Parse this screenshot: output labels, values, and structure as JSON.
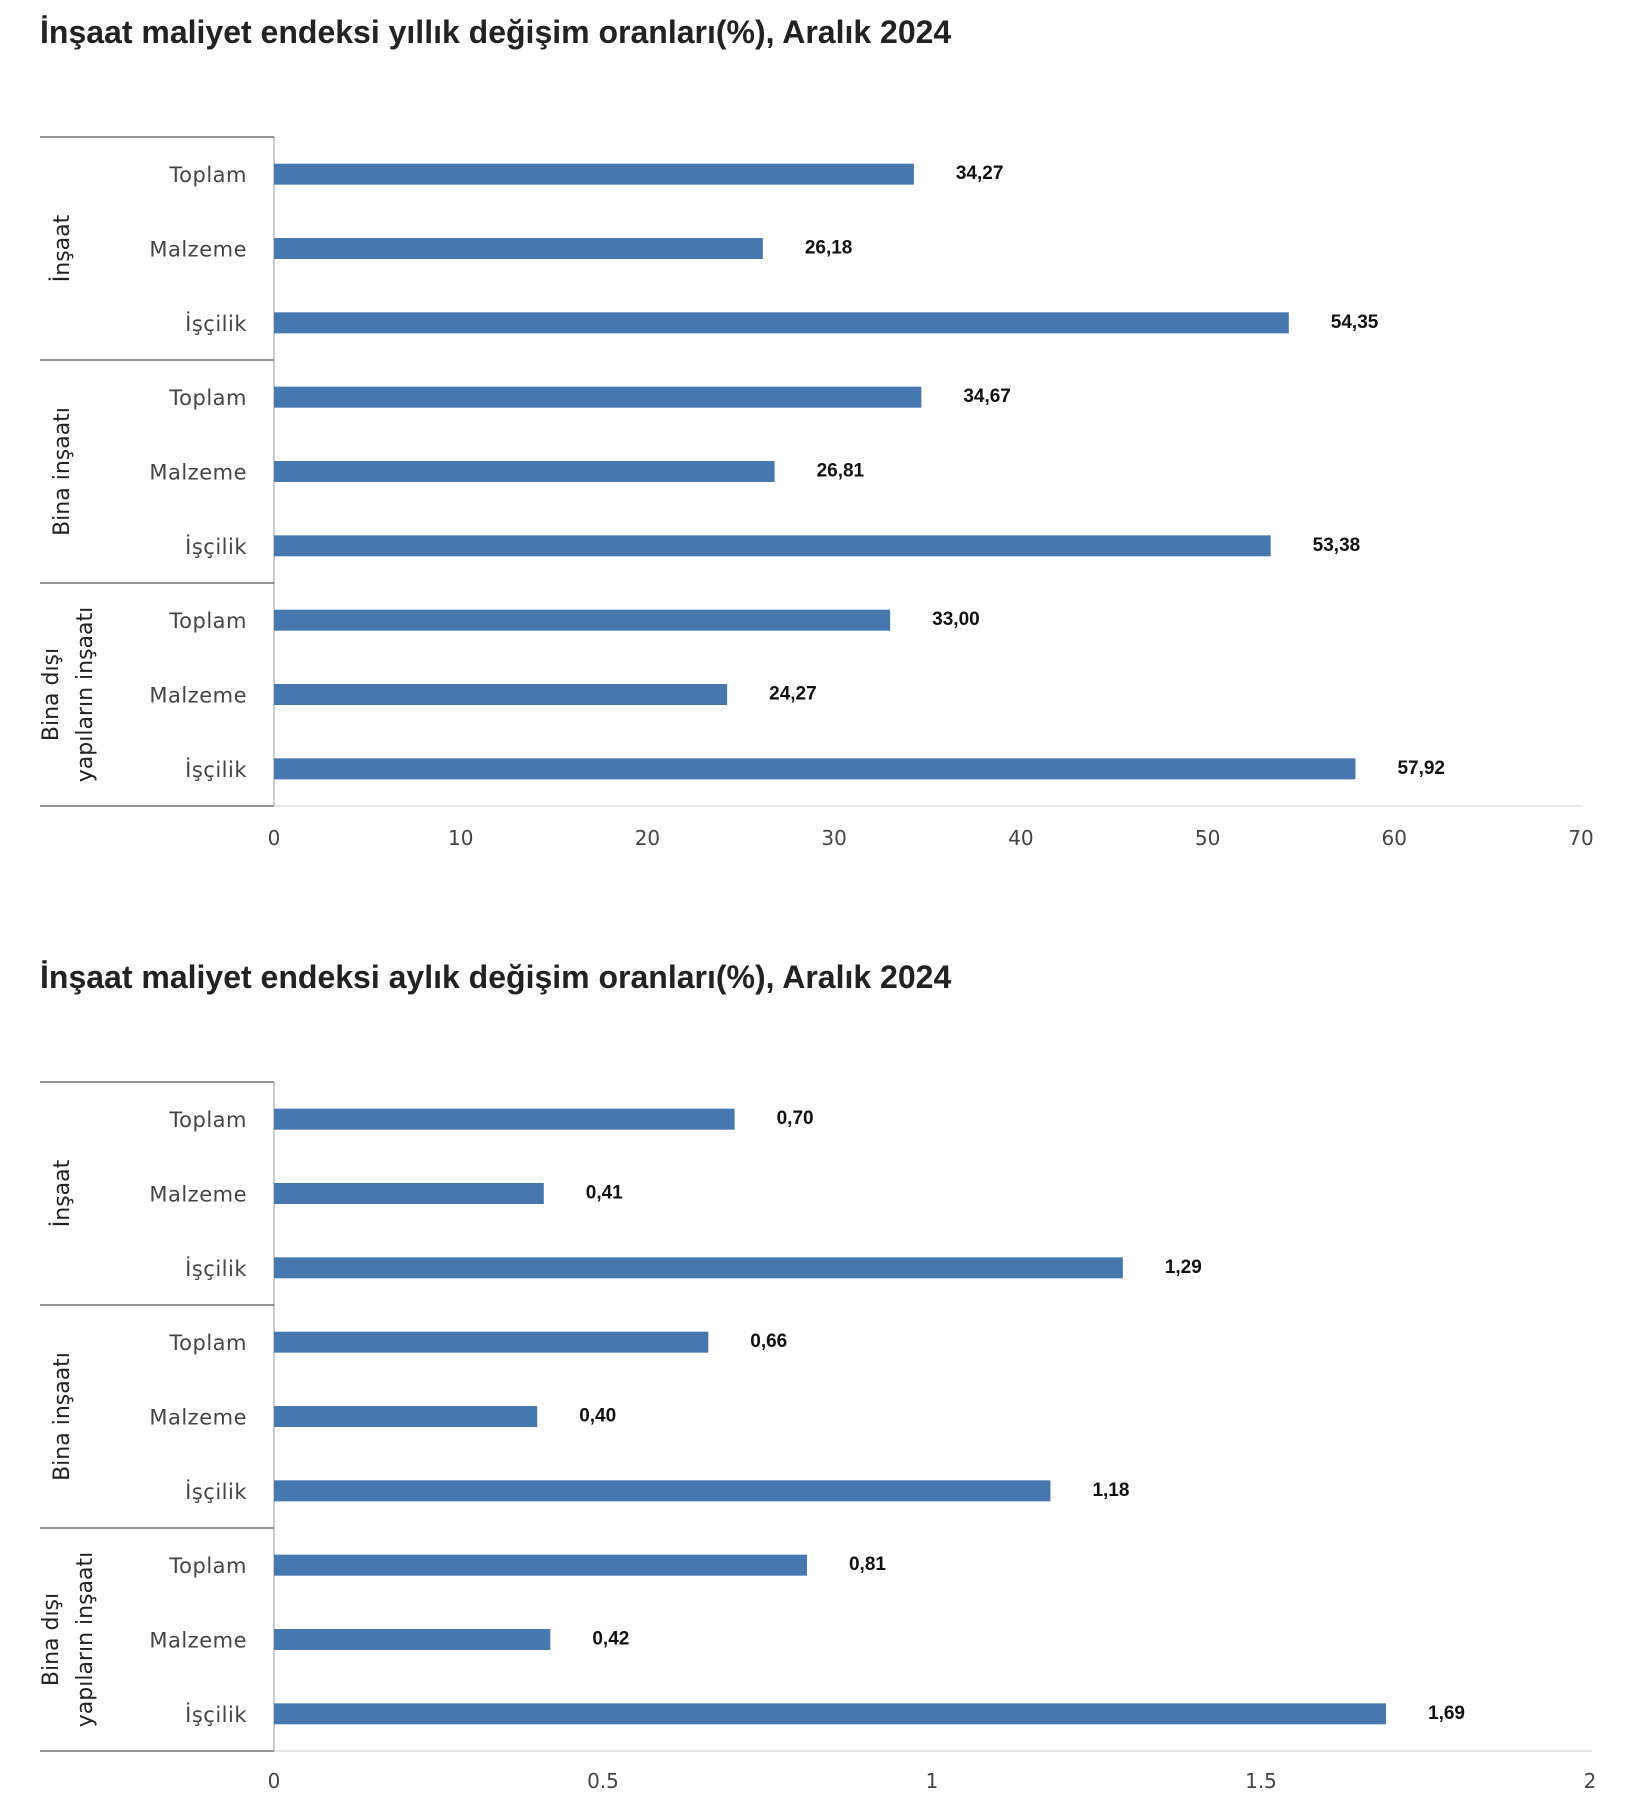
{
  "charts": [
    {
      "title": "İnşaat maliyet endeksi yıllık değişim oranları(%), Aralık 2024"
    },
    {
      "title": "İnşaat maliyet endeksi aylık değişim oranları(%), Aralık 2024"
    }
  ],
  "colors": {
    "bar": "#4677AF",
    "axis": "#BBBBBB",
    "group_line": "#555555"
  },
  "chart_data": [
    {
      "type": "bar",
      "orientation": "horizontal",
      "title": "İnşaat maliyet endeksi yıllık değişim oranları(%), Aralık 2024",
      "groups": [
        "İnşaat",
        "Bina inşaatı",
        "Bina dışı yapıların inşaatı"
      ],
      "categories": [
        "Toplam",
        "Malzeme",
        "İşçilik"
      ],
      "values": [
        [
          34.27,
          26.18,
          54.35
        ],
        [
          34.67,
          26.81,
          53.38
        ],
        [
          33.0,
          24.27,
          57.92
        ]
      ],
      "value_labels": [
        [
          "34,27",
          "26,18",
          "54,35"
        ],
        [
          "34,67",
          "26,81",
          "53,38"
        ],
        [
          "33,00",
          "24,27",
          "57,92"
        ]
      ],
      "xlim": [
        0,
        70
      ],
      "xticks": [
        0,
        10,
        20,
        30,
        40,
        50,
        60,
        70
      ],
      "xtick_labels": [
        "0",
        "10",
        "20",
        "30",
        "40",
        "50",
        "60",
        "70"
      ],
      "grid": false,
      "legend": "none"
    },
    {
      "type": "bar",
      "orientation": "horizontal",
      "title": "İnşaat maliyet endeksi aylık değişim oranları(%), Aralık 2024",
      "groups": [
        "İnşaat",
        "Bina inşaatı",
        "Bina dışı yapıların inşaatı"
      ],
      "categories": [
        "Toplam",
        "Malzeme",
        "İşçilik"
      ],
      "values": [
        [
          0.7,
          0.41,
          1.29
        ],
        [
          0.66,
          0.4,
          1.18
        ],
        [
          0.81,
          0.42,
          1.69
        ]
      ],
      "value_labels": [
        [
          "0,70",
          "0,41",
          "1,29"
        ],
        [
          "0,66",
          "0,40",
          "1,18"
        ],
        [
          "0,81",
          "0,42",
          "1,69"
        ]
      ],
      "xlim": [
        0,
        2
      ],
      "xticks": [
        0,
        0.5,
        1,
        1.5,
        2
      ],
      "xtick_labels": [
        "0",
        "0.5",
        "1",
        "1.5",
        "2"
      ],
      "grid": false,
      "legend": "none"
    }
  ]
}
